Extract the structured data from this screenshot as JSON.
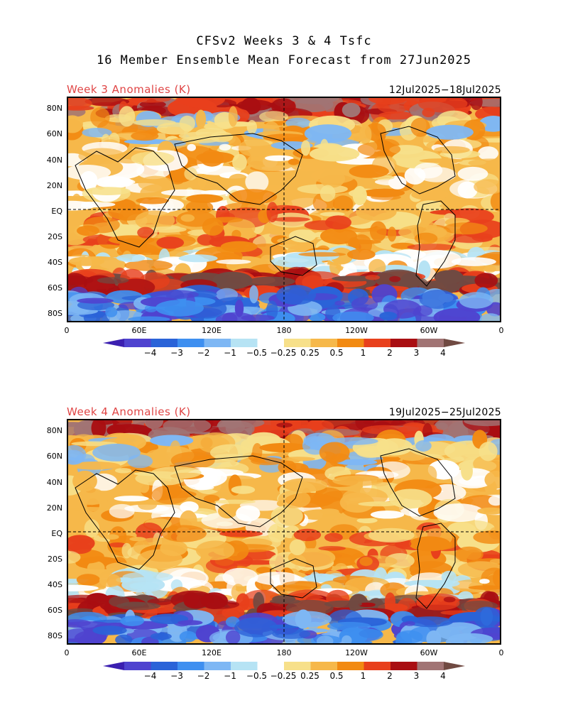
{
  "title": {
    "line1": "CFSv2 Weeks 3 & 4 Tsfc",
    "line2": "16 Member Ensemble Mean Forecast from 27Jun2025"
  },
  "panels": [
    {
      "label": "Week 3 Anomalies (K)",
      "dates": "12Jul2025−18Jul2025"
    },
    {
      "label": "Week 4 Anomalies (K)",
      "dates": "19Jul2025−25Jul2025"
    }
  ],
  "lat_labels": [
    "80N",
    "60N",
    "40N",
    "20N",
    "EQ",
    "20S",
    "40S",
    "60S",
    "80S"
  ],
  "lon_labels": [
    "0",
    "60E",
    "120E",
    "180",
    "120W",
    "60W",
    "0"
  ],
  "colorbar": {
    "tick_labels": [
      "−4",
      "−3",
      "−2",
      "−1",
      "−0.5",
      "−0.25",
      "0.25",
      "0.5",
      "1",
      "2",
      "3",
      "4"
    ],
    "colors": [
      "#3b1fb0",
      "#4f43cf",
      "#2a63d8",
      "#3e8ff0",
      "#7eb7f4",
      "#b6e3f4",
      "#ffffff",
      "#f7e08a",
      "#f6b84a",
      "#f28a12",
      "#e8401c",
      "#a90e12",
      "#a17474",
      "#704a42"
    ]
  },
  "accent_color": "#e04545"
}
